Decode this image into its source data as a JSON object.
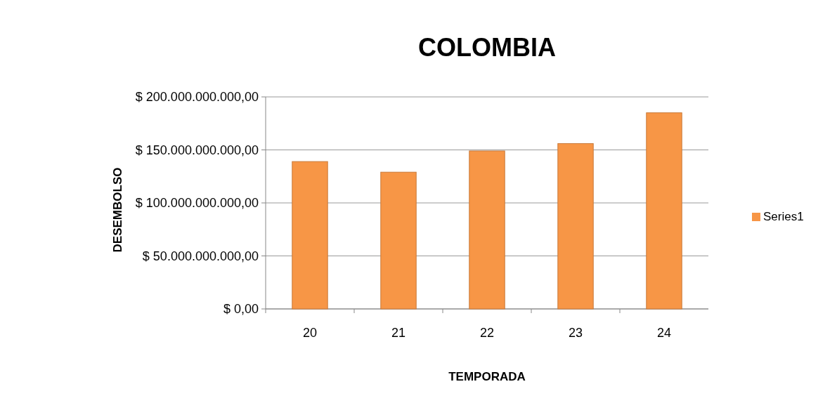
{
  "chart_data": {
    "type": "bar",
    "title": "COLOMBIA",
    "xlabel": "TEMPORADA",
    "ylabel": "DESEMBOLSO",
    "categories": [
      "20",
      "21",
      "22",
      "23",
      "24"
    ],
    "series": [
      {
        "name": "Series1",
        "color": "#f79646",
        "values": [
          139000000000,
          129000000000,
          149000000000,
          156000000000,
          185000000000
        ]
      }
    ],
    "ylim": [
      0,
      200000000000
    ],
    "yticks": [
      {
        "value": 0,
        "label": "$ 0,00"
      },
      {
        "value": 50000000000,
        "label": "$ 50.000.000.000,00"
      },
      {
        "value": 100000000000,
        "label": "$ 100.000.000.000,00"
      },
      {
        "value": 150000000000,
        "label": "$ 150.000.000.000,00"
      },
      {
        "value": 200000000000,
        "label": "$ 200.000.000.000,00"
      }
    ],
    "grid": "y",
    "legend": "right"
  }
}
